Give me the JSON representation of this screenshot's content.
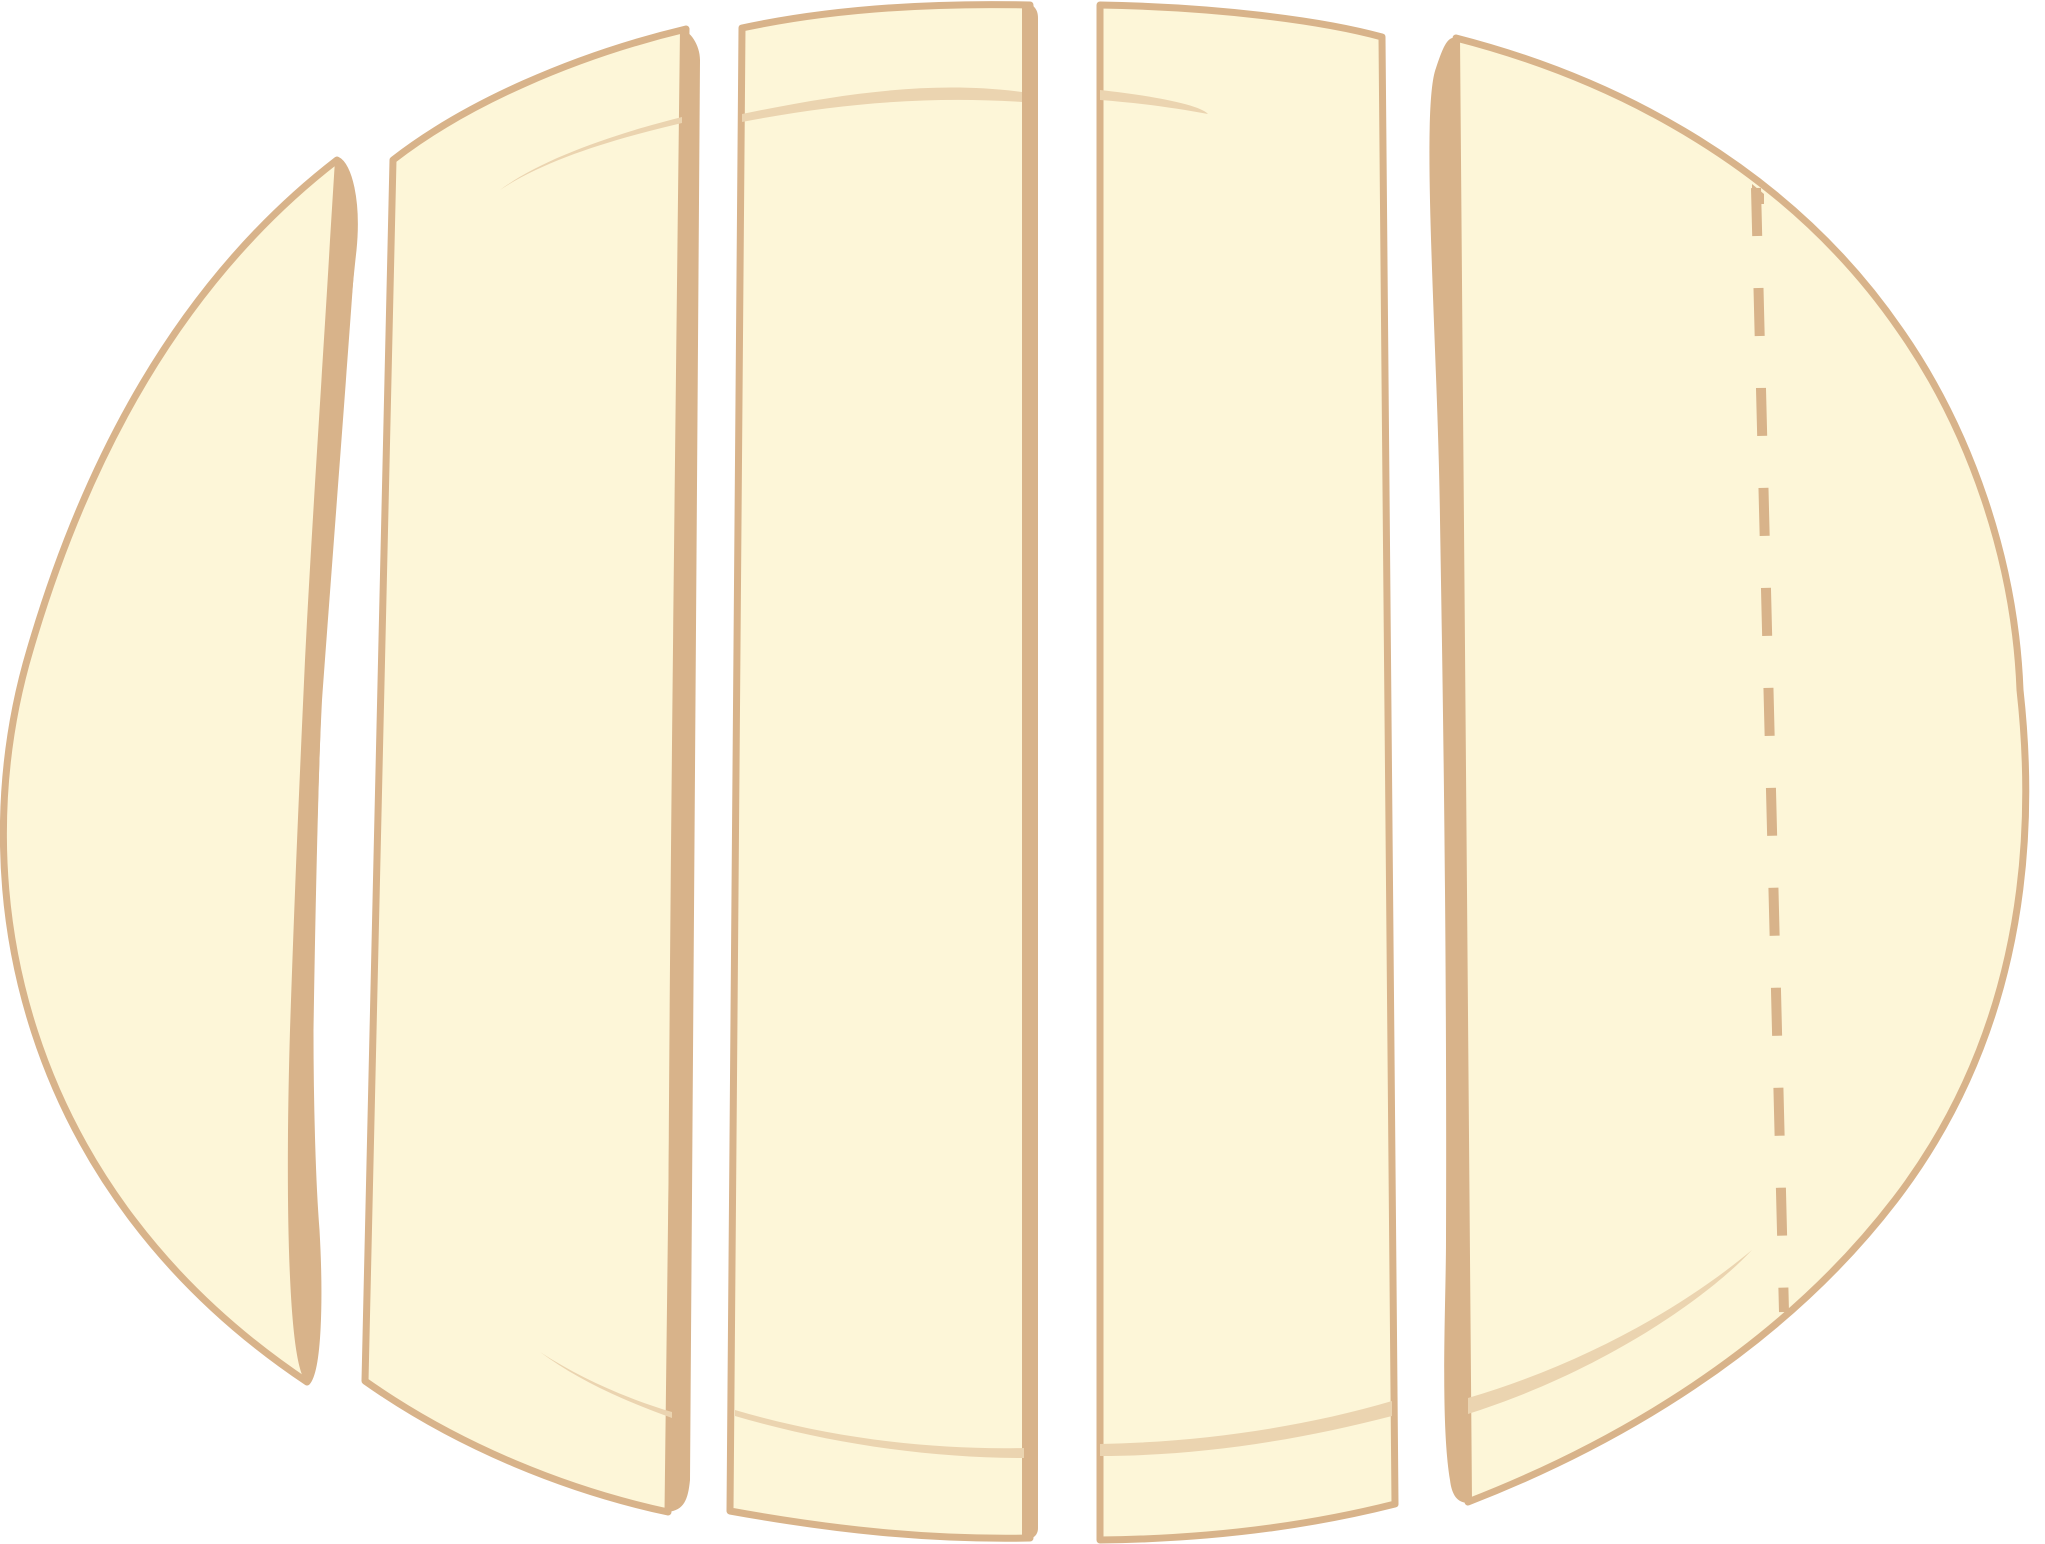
{
  "illustration": {
    "subject": "sliced-dough-loaf",
    "slices": [
      {
        "id": "slice-1",
        "shape": "end-piece"
      },
      {
        "id": "slice-2",
        "shape": "middle-piece"
      },
      {
        "id": "slice-3",
        "shape": "middle-piece"
      },
      {
        "id": "slice-4",
        "shape": "middle-piece"
      },
      {
        "id": "slice-5",
        "shape": "end-piece",
        "fold_mark": "dashed-line"
      }
    ],
    "colors": {
      "dough_fill": "#FDF6D8",
      "outline": "#D8B38A",
      "highlight": "#EBD4B0",
      "background": "#FFFFFF"
    }
  }
}
